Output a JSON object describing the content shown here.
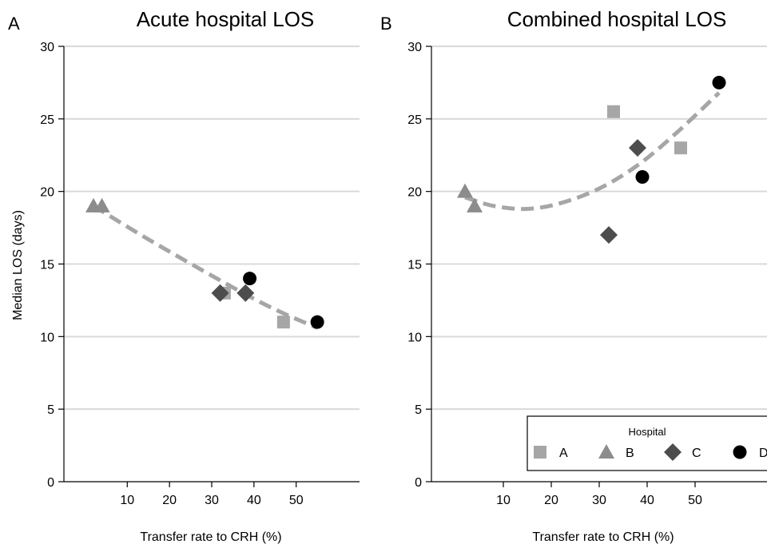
{
  "chart_data": [
    {
      "panel": "A",
      "type": "scatter",
      "title": "Acute hospital LOS",
      "xlabel": "Transfer rate to CRH (%)",
      "ylabel": "Median LOS (days)",
      "xlim": [
        -5,
        65
      ],
      "ylim": [
        0,
        30
      ],
      "xticks": [
        10,
        20,
        30,
        40,
        50
      ],
      "yticks": [
        0,
        5,
        10,
        15,
        20,
        25,
        30
      ],
      "grid": true,
      "series": [
        {
          "name": "A",
          "marker": "square",
          "color": "#a6a6a6",
          "points": [
            {
              "x": 33,
              "y": 13
            },
            {
              "x": 47,
              "y": 11
            }
          ]
        },
        {
          "name": "B",
          "marker": "triangle",
          "color": "#8c8c8c",
          "points": [
            {
              "x": 2,
              "y": 19
            },
            {
              "x": 4,
              "y": 19
            }
          ]
        },
        {
          "name": "C",
          "marker": "diamond",
          "color": "#4d4d4d",
          "points": [
            {
              "x": 32,
              "y": 13
            },
            {
              "x": 38,
              "y": 13
            }
          ]
        },
        {
          "name": "D",
          "marker": "circle",
          "color": "#000000",
          "points": [
            {
              "x": 39,
              "y": 14
            },
            {
              "x": 55,
              "y": 11
            }
          ]
        }
      ],
      "fit": {
        "style": "dashed",
        "color": "#a6a6a6",
        "points": [
          {
            "x": 2,
            "y": 19
          },
          {
            "x": 15,
            "y": 16.7
          },
          {
            "x": 30,
            "y": 14.2
          },
          {
            "x": 40,
            "y": 12.6
          },
          {
            "x": 47,
            "y": 11.6
          },
          {
            "x": 55,
            "y": 10.6
          }
        ]
      }
    },
    {
      "panel": "B",
      "type": "scatter",
      "title": "Combined hospital LOS",
      "xlabel": "Transfer rate to CRH (%)",
      "ylabel": "",
      "xlim": [
        -5,
        65
      ],
      "ylim": [
        0,
        30
      ],
      "xticks": [
        10,
        20,
        30,
        40,
        50
      ],
      "yticks": [
        0,
        5,
        10,
        15,
        20,
        25,
        30
      ],
      "grid": true,
      "series": [
        {
          "name": "A",
          "marker": "square",
          "color": "#a6a6a6",
          "points": [
            {
              "x": 33,
              "y": 25.5
            },
            {
              "x": 47,
              "y": 23
            }
          ]
        },
        {
          "name": "B",
          "marker": "triangle",
          "color": "#8c8c8c",
          "points": [
            {
              "x": 2,
              "y": 20
            },
            {
              "x": 4,
              "y": 19
            }
          ]
        },
        {
          "name": "C",
          "marker": "diamond",
          "color": "#4d4d4d",
          "points": [
            {
              "x": 32,
              "y": 17
            },
            {
              "x": 38,
              "y": 23
            }
          ]
        },
        {
          "name": "D",
          "marker": "circle",
          "color": "#000000",
          "points": [
            {
              "x": 39,
              "y": 21
            },
            {
              "x": 55,
              "y": 27.5
            }
          ]
        }
      ],
      "fit": {
        "style": "dashed",
        "color": "#a6a6a6",
        "points": [
          {
            "x": 2,
            "y": 19.6
          },
          {
            "x": 8,
            "y": 19.0
          },
          {
            "x": 15,
            "y": 18.8
          },
          {
            "x": 22,
            "y": 19.2
          },
          {
            "x": 30,
            "y": 20.2
          },
          {
            "x": 38,
            "y": 21.8
          },
          {
            "x": 46,
            "y": 24.0
          },
          {
            "x": 55,
            "y": 26.8
          }
        ]
      }
    }
  ],
  "legend": {
    "title": "Hospital",
    "placement": "bottom-right",
    "items": [
      {
        "label": "A",
        "marker": "square",
        "color": "#a6a6a6"
      },
      {
        "label": "B",
        "marker": "triangle",
        "color": "#8c8c8c"
      },
      {
        "label": "C",
        "marker": "diamond",
        "color": "#4d4d4d"
      },
      {
        "label": "D",
        "marker": "circle",
        "color": "#000000"
      }
    ]
  },
  "colors": {
    "grid": "#d9d9d9",
    "axis": "#000000"
  }
}
